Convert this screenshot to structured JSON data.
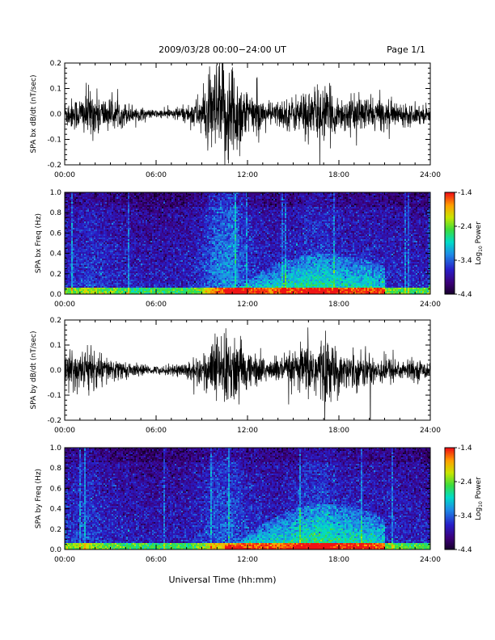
{
  "header": {
    "title": "2009/03/28  00:00−24:00 UT",
    "page": "Page 1/1"
  },
  "xaxis": {
    "label": "Universal Time (hh:mm)",
    "ticks": [
      "00:00",
      "06:00",
      "12:00",
      "18:00",
      "24:00"
    ],
    "range_hours": [
      0,
      24
    ]
  },
  "colorbar": {
    "label_prefix": "Log",
    "label_sub": "10",
    "label_suffix": " Power",
    "ticks": [
      "-1.4",
      "-2.4",
      "-3.4",
      "-4.4"
    ],
    "range": [
      -4.4,
      -1.4
    ]
  },
  "chart_data": [
    {
      "type": "line",
      "id": "bx-ts",
      "ylabel": "SPA bx dB/dt (nT/sec)",
      "ylim": [
        -0.2,
        0.2
      ],
      "yticks": [
        "0.2",
        "0.1",
        "0.0",
        "-0.1",
        "-0.2"
      ],
      "envelope": [
        {
          "hour": 0.0,
          "amp": 0.05
        },
        {
          "hour": 1.0,
          "amp": 0.06
        },
        {
          "hour": 1.5,
          "amp": 0.09
        },
        {
          "hour": 2.5,
          "amp": 0.06
        },
        {
          "hour": 4.0,
          "amp": 0.04
        },
        {
          "hour": 5.5,
          "amp": 0.015
        },
        {
          "hour": 6.5,
          "amp": 0.015
        },
        {
          "hour": 8.0,
          "amp": 0.03
        },
        {
          "hour": 9.0,
          "amp": 0.07
        },
        {
          "hour": 10.0,
          "amp": 0.18
        },
        {
          "hour": 11.0,
          "amp": 0.2
        },
        {
          "hour": 12.0,
          "amp": 0.08
        },
        {
          "hour": 13.5,
          "amp": 0.04
        },
        {
          "hour": 15.0,
          "amp": 0.06
        },
        {
          "hour": 16.0,
          "amp": 0.09
        },
        {
          "hour": 17.0,
          "amp": 0.1
        },
        {
          "hour": 18.0,
          "amp": 0.06
        },
        {
          "hour": 20.0,
          "amp": 0.06
        },
        {
          "hour": 22.0,
          "amp": 0.04
        },
        {
          "hour": 24.0,
          "amp": 0.03
        }
      ]
    },
    {
      "type": "heatmap",
      "id": "bx-spec",
      "ylabel": "SPA bx Freq (Hz)",
      "ylim": [
        0.0,
        1.0
      ],
      "yticks": [
        "1.0",
        "0.8",
        "0.6",
        "0.4",
        "0.2",
        "0.0"
      ],
      "features": [
        {
          "name": "low-freq band",
          "hours": [
            10.5,
            21.0
          ],
          "freq_top": 0.35
        }
      ]
    },
    {
      "type": "line",
      "id": "by-ts",
      "ylabel": "SPA by dB/dt (nT/sec)",
      "ylim": [
        -0.2,
        0.2
      ],
      "yticks": [
        "0.2",
        "0.1",
        "0.0",
        "-0.1",
        "-0.2"
      ],
      "envelope": [
        {
          "hour": 0.0,
          "amp": 0.06
        },
        {
          "hour": 1.0,
          "amp": 0.07
        },
        {
          "hour": 1.5,
          "amp": 0.09
        },
        {
          "hour": 2.5,
          "amp": 0.05
        },
        {
          "hour": 4.0,
          "amp": 0.03
        },
        {
          "hour": 5.5,
          "amp": 0.015
        },
        {
          "hour": 6.5,
          "amp": 0.015
        },
        {
          "hour": 8.0,
          "amp": 0.03
        },
        {
          "hour": 9.0,
          "amp": 0.06
        },
        {
          "hour": 10.0,
          "amp": 0.12
        },
        {
          "hour": 11.0,
          "amp": 0.13
        },
        {
          "hour": 12.0,
          "amp": 0.07
        },
        {
          "hour": 13.5,
          "amp": 0.04
        },
        {
          "hour": 15.0,
          "amp": 0.06
        },
        {
          "hour": 16.0,
          "amp": 0.1
        },
        {
          "hour": 17.0,
          "amp": 0.12
        },
        {
          "hour": 18.0,
          "amp": 0.07
        },
        {
          "hour": 20.0,
          "amp": 0.06
        },
        {
          "hour": 22.0,
          "amp": 0.04
        },
        {
          "hour": 24.0,
          "amp": 0.03
        }
      ]
    },
    {
      "type": "heatmap",
      "id": "by-spec",
      "ylabel": "SPA by Freq (Hz)",
      "ylim": [
        0.0,
        1.0
      ],
      "yticks": [
        "1.0",
        "0.8",
        "0.6",
        "0.4",
        "0.2",
        "0.0"
      ],
      "features": [
        {
          "name": "low-freq band",
          "hours": [
            10.5,
            21.0
          ],
          "freq_top": 0.4
        }
      ]
    }
  ]
}
